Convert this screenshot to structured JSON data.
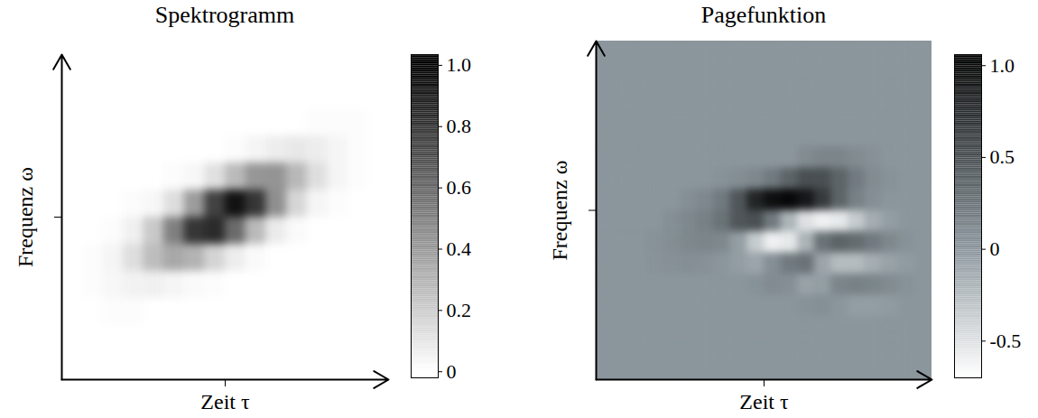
{
  "chart_data": [
    {
      "type": "heatmap",
      "title": "Spektrogramm",
      "x_label": "Zeit τ",
      "y_label": "Frequenz ω",
      "x": [
        0,
        1,
        2,
        3,
        4,
        5,
        6,
        7,
        8,
        9,
        10,
        11,
        12,
        13,
        14,
        15
      ],
      "y": [
        0,
        1,
        2,
        3,
        4,
        5,
        6,
        7,
        8,
        9,
        10,
        11
      ],
      "values": [
        [
          0,
          0,
          0,
          0,
          0,
          0,
          0,
          0,
          0,
          0,
          0,
          0,
          0,
          0,
          0,
          0
        ],
        [
          0,
          0,
          0,
          0,
          0,
          0,
          0,
          0,
          0,
          0,
          0,
          0,
          0,
          0,
          0,
          0
        ],
        [
          0,
          0,
          0.01,
          0.01,
          0,
          0,
          0,
          0,
          0,
          0,
          0,
          0,
          0,
          0,
          0,
          0
        ],
        [
          0,
          0.01,
          0.03,
          0.05,
          0.06,
          0.04,
          0.02,
          0.01,
          0,
          0,
          0,
          0,
          0,
          0,
          0,
          0
        ],
        [
          0,
          0.01,
          0.04,
          0.13,
          0.26,
          0.34,
          0.3,
          0.17,
          0.07,
          0.02,
          0,
          0,
          0,
          0,
          0,
          0
        ],
        [
          0,
          0,
          0.01,
          0.06,
          0.21,
          0.5,
          0.79,
          0.83,
          0.58,
          0.27,
          0.08,
          0.02,
          0,
          0,
          0,
          0
        ],
        [
          0,
          0,
          0,
          0.01,
          0.03,
          0.13,
          0.39,
          0.74,
          0.93,
          0.79,
          0.44,
          0.16,
          0.04,
          0.01,
          0,
          0
        ],
        [
          0,
          0,
          0,
          0,
          0,
          0.01,
          0.03,
          0.12,
          0.27,
          0.41,
          0.42,
          0.28,
          0.13,
          0.04,
          0.01,
          0
        ],
        [
          0,
          0,
          0,
          0,
          0,
          0,
          0,
          0,
          0.01,
          0.04,
          0.07,
          0.09,
          0.07,
          0.04,
          0.01,
          0
        ],
        [
          0,
          0,
          0,
          0,
          0,
          0,
          0,
          0,
          0,
          0,
          0,
          0,
          0.01,
          0.01,
          0.01,
          0
        ],
        [
          0,
          0,
          0,
          0,
          0,
          0,
          0,
          0,
          0,
          0,
          0,
          0,
          0,
          0,
          0,
          0
        ],
        [
          0,
          0,
          0,
          0,
          0,
          0,
          0,
          0,
          0,
          0,
          0,
          0,
          0,
          0,
          0,
          0
        ]
      ],
      "xlim": [
        -0.5,
        15.5
      ],
      "ylim": [
        -0.5,
        11.5
      ],
      "xticks": [
        7.5
      ],
      "yticks": [
        5.5
      ],
      "tick_labels": false,
      "colorbar": {
        "lim": [
          -0.02,
          1.035
        ],
        "ticks": [
          0,
          {
            "value": 0.2,
            "label": "0.2"
          },
          {
            "value": 0.4,
            "label": "0.4"
          },
          {
            "value": 0.6,
            "label": "0.6"
          },
          {
            "value": 0.8,
            "label": "0.8"
          },
          {
            "value": 1,
            "label": "1.0"
          }
        ],
        "colors": [
          "#ffffff",
          "#000000"
        ],
        "stops": [
          0,
          1
        ]
      }
    },
    {
      "type": "heatmap",
      "title": "Pagefunktion",
      "x_label": "Zeit τ",
      "y_label": "Frequenz ω",
      "x": [
        0,
        1,
        2,
        3,
        4,
        5,
        6,
        7,
        8,
        9,
        10,
        11,
        12,
        13,
        14,
        15,
        16,
        17,
        18,
        19
      ],
      "y": [
        0,
        1,
        2,
        3,
        4,
        5,
        6,
        7,
        8,
        9,
        10,
        11,
        12,
        13,
        14,
        15
      ],
      "values": [
        [
          0,
          0,
          0,
          0,
          0,
          0,
          0,
          0,
          0,
          0,
          0,
          0,
          0,
          0,
          0,
          0,
          0,
          0,
          0,
          0
        ],
        [
          0,
          0,
          0,
          0,
          0,
          0,
          0,
          0,
          0,
          0,
          0,
          0,
          0,
          0,
          0,
          0,
          0,
          0,
          0,
          0
        ],
        [
          0,
          0,
          0,
          0,
          0,
          0,
          0,
          0,
          0,
          0,
          0,
          0,
          0,
          0,
          0,
          0,
          0,
          0,
          0,
          0
        ],
        [
          0,
          0,
          0,
          0,
          0,
          0,
          0,
          0,
          0,
          0,
          0,
          0,
          0.03,
          0.05,
          0,
          -0.05,
          -0.05,
          -0.03,
          0,
          0
        ],
        [
          0,
          0,
          0,
          0,
          0,
          0,
          0,
          0,
          0,
          0.03,
          0.08,
          0.05,
          -0.08,
          -0.05,
          0.12,
          0.15,
          0.12,
          0.08,
          0.03,
          0
        ],
        [
          0,
          0,
          0,
          0.02,
          0.04,
          0.05,
          0.04,
          0,
          -0.05,
          -0.1,
          0.05,
          0.2,
          0.25,
          -0.1,
          -0.25,
          -0.25,
          -0.15,
          -0.08,
          -0.03,
          0
        ],
        [
          0,
          0,
          0,
          0.03,
          0.06,
          0.1,
          0.12,
          0.1,
          -0.05,
          -0.35,
          -0.6,
          -0.55,
          -0.2,
          0.25,
          0.35,
          0.3,
          0.2,
          0.1,
          0.03,
          0
        ],
        [
          0,
          0,
          0,
          0,
          0.05,
          0.1,
          0.15,
          0.25,
          0.45,
          0.5,
          0.2,
          -0.2,
          -0.5,
          -0.6,
          -0.55,
          -0.35,
          -0.15,
          -0.05,
          0,
          0
        ],
        [
          0,
          0,
          0,
          0,
          0,
          0.05,
          0.1,
          0.2,
          0.45,
          0.8,
          0.95,
          1,
          0.9,
          0.65,
          0.35,
          0.15,
          0.05,
          0,
          0,
          0
        ],
        [
          0,
          0,
          0,
          0,
          0,
          0,
          0,
          0.03,
          0.06,
          0.1,
          0.2,
          0.35,
          0.5,
          0.5,
          0.35,
          0.2,
          0.08,
          0.03,
          0,
          0
        ],
        [
          0,
          0,
          0,
          0,
          0,
          0,
          0,
          0,
          0,
          0,
          0,
          0,
          0.08,
          0.12,
          0.12,
          0.08,
          0.04,
          0,
          0,
          0
        ],
        [
          0,
          0,
          0,
          0,
          0,
          0,
          0,
          0,
          0,
          0,
          0,
          0,
          0,
          0,
          0,
          0,
          0,
          0,
          0,
          0
        ],
        [
          0,
          0,
          0,
          0,
          0,
          0,
          0,
          0,
          0,
          0,
          0,
          0,
          0,
          0,
          0,
          0,
          0,
          0,
          0,
          0
        ],
        [
          0,
          0,
          0,
          0,
          0,
          0,
          0,
          0,
          0,
          0,
          0,
          0,
          0,
          0,
          0,
          0,
          0,
          0,
          0,
          0
        ],
        [
          0,
          0,
          0,
          0,
          0,
          0,
          0,
          0,
          0,
          0,
          0,
          0,
          0,
          0,
          0,
          0,
          0,
          0,
          0,
          0
        ],
        [
          0,
          0,
          0,
          0,
          0,
          0,
          0,
          0,
          0,
          0,
          0,
          0,
          0,
          0,
          0,
          0,
          0,
          0,
          0,
          0
        ]
      ],
      "xlim": [
        -0.5,
        19.5
      ],
      "ylim": [
        -0.5,
        15.5
      ],
      "xticks": [
        9.5
      ],
      "yticks": [
        7.5
      ],
      "tick_labels": false,
      "colorbar": {
        "lim": [
          -0.7,
          1.06
        ],
        "ticks": [
          -0.5,
          0,
          0.5,
          {
            "value": 1,
            "label": "1.0"
          }
        ],
        "colors": [
          "#ffffff",
          "#8b969c",
          "#000000"
        ],
        "stops": [
          -0.7,
          0,
          1.06
        ]
      }
    }
  ]
}
